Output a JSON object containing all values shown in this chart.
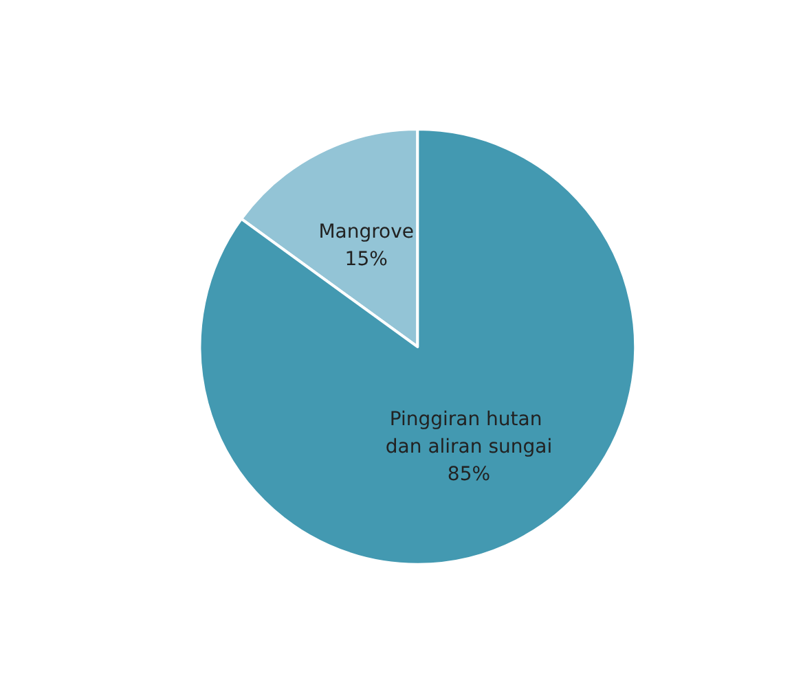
{
  "chart_data": {
    "type": "pie",
    "categories": [
      "Mangrove",
      "Pinggiran hutan dan aliran sungai"
    ],
    "values": [
      15,
      85
    ],
    "colors": [
      "#93c4d6",
      "#4399b1"
    ],
    "value_labels": [
      "15%",
      "85%"
    ],
    "legend": false
  }
}
